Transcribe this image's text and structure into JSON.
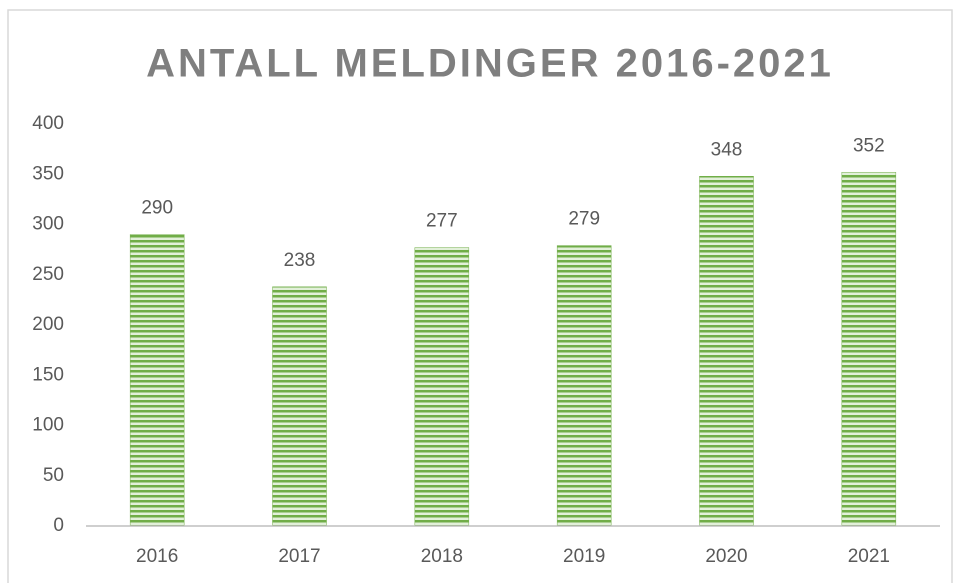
{
  "chart_data": {
    "type": "bar",
    "title": "ANTALL MELDINGER 2016-2021",
    "categories": [
      "2016",
      "2017",
      "2018",
      "2019",
      "2020",
      "2021"
    ],
    "values": [
      290,
      238,
      277,
      279,
      348,
      352
    ],
    "color": "#70ad47",
    "ylim": [
      0,
      400
    ],
    "yticks": [
      0,
      50,
      100,
      150,
      200,
      250,
      300,
      350,
      400
    ],
    "grid": false
  }
}
